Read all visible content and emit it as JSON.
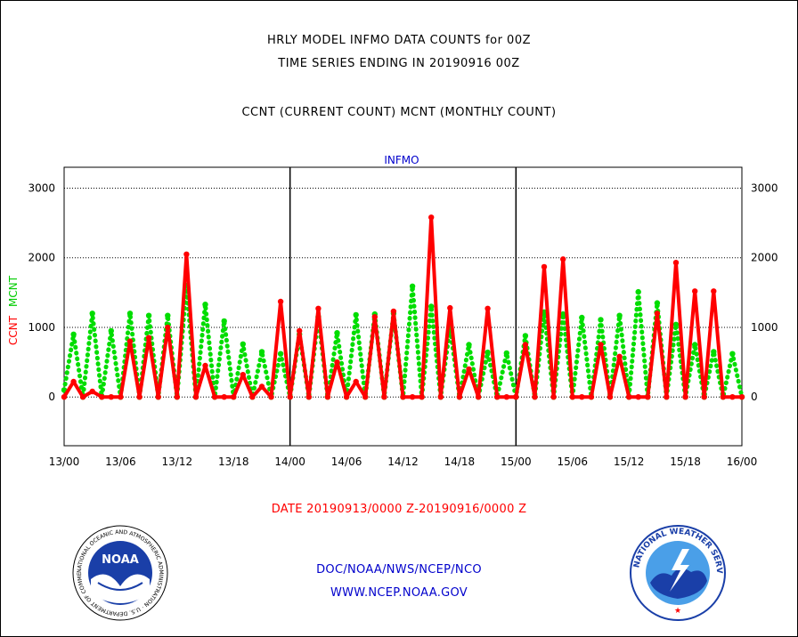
{
  "header": {
    "title_line1": "HRLY MODEL INFMO DATA COUNTS for 00Z",
    "title_line2": "TIME SERIES ENDING IN 20190916 00Z",
    "title_line3": "CCNT (CURRENT COUNT) MCNT (MONTHLY COUNT)"
  },
  "chart_data": {
    "type": "line",
    "title": "INFMO",
    "ylabel_series1": "CCNT",
    "ylabel_series2": "MCNT",
    "xlabel": "DATE 20190913/0000 Z-20190916/0000 Z",
    "ylim": [
      -700,
      3300
    ],
    "yticks": [
      0,
      1000,
      2000,
      3000
    ],
    "xlim": [
      0,
      72
    ],
    "xticks": [
      {
        "x": 0,
        "label": "13/00"
      },
      {
        "x": 6,
        "label": "13/06"
      },
      {
        "x": 12,
        "label": "13/12"
      },
      {
        "x": 18,
        "label": "13/18"
      },
      {
        "x": 24,
        "label": "14/00"
      },
      {
        "x": 30,
        "label": "14/06"
      },
      {
        "x": 36,
        "label": "14/12"
      },
      {
        "x": 42,
        "label": "14/18"
      },
      {
        "x": 48,
        "label": "15/00"
      },
      {
        "x": 54,
        "label": "15/06"
      },
      {
        "x": 60,
        "label": "15/12"
      },
      {
        "x": 66,
        "label": "15/18"
      },
      {
        "x": 72,
        "label": "16/00"
      }
    ],
    "day_dividers": [
      24,
      48
    ],
    "grid": true,
    "series": [
      {
        "name": "CCNT",
        "color": "#ff0000",
        "style": "solid",
        "values": [
          0,
          220,
          0,
          80,
          0,
          0,
          0,
          800,
          0,
          850,
          0,
          1000,
          0,
          2050,
          0,
          450,
          0,
          0,
          0,
          320,
          0,
          150,
          0,
          1370,
          0,
          950,
          0,
          1270,
          0,
          500,
          0,
          220,
          0,
          1150,
          0,
          1230,
          0,
          0,
          0,
          2580,
          0,
          1280,
          0,
          400,
          0,
          1270,
          0,
          0,
          0,
          750,
          0,
          1870,
          0,
          1980,
          0,
          0,
          0,
          750,
          0,
          580,
          0,
          0,
          0,
          1200,
          0,
          1930,
          0,
          1520,
          0,
          1520,
          0,
          0,
          0
        ]
      },
      {
        "name": "MCNT",
        "color": "#00dd00",
        "style": "dotted",
        "values": [
          100,
          900,
          0,
          1200,
          0,
          950,
          0,
          1200,
          0,
          1170,
          0,
          1170,
          0,
          1600,
          0,
          1330,
          0,
          1090,
          0,
          760,
          0,
          650,
          0,
          620,
          0,
          900,
          0,
          1150,
          0,
          920,
          0,
          1180,
          0,
          1190,
          0,
          1200,
          0,
          1590,
          0,
          1300,
          0,
          1000,
          0,
          750,
          0,
          640,
          0,
          630,
          0,
          880,
          0,
          1220,
          0,
          1190,
          0,
          1140,
          0,
          1110,
          0,
          1170,
          0,
          1510,
          0,
          1350,
          0,
          1040,
          0,
          750,
          0,
          650,
          0,
          620,
          0
        ]
      }
    ]
  },
  "footer": {
    "agency_path": "DOC/NOAA/NWS/NCEP/NCO",
    "website": "WWW.NCEP.NOAA.GOV"
  },
  "logos": {
    "noaa_text": "NOAA",
    "noaa_ring_text": "NATIONAL OCEANIC AND ATMOSPHERIC ADMINISTRATION · U.S. DEPARTMENT OF COMMERCE ·",
    "nws_ring_text": "NATIONAL WEATHER SERVICE"
  },
  "colors": {
    "ccnt": "#ff0000",
    "mcnt": "#00dd00",
    "title_blue": "#0000cc",
    "footer_blue": "#0000cc",
    "date_red": "#ff0000"
  }
}
